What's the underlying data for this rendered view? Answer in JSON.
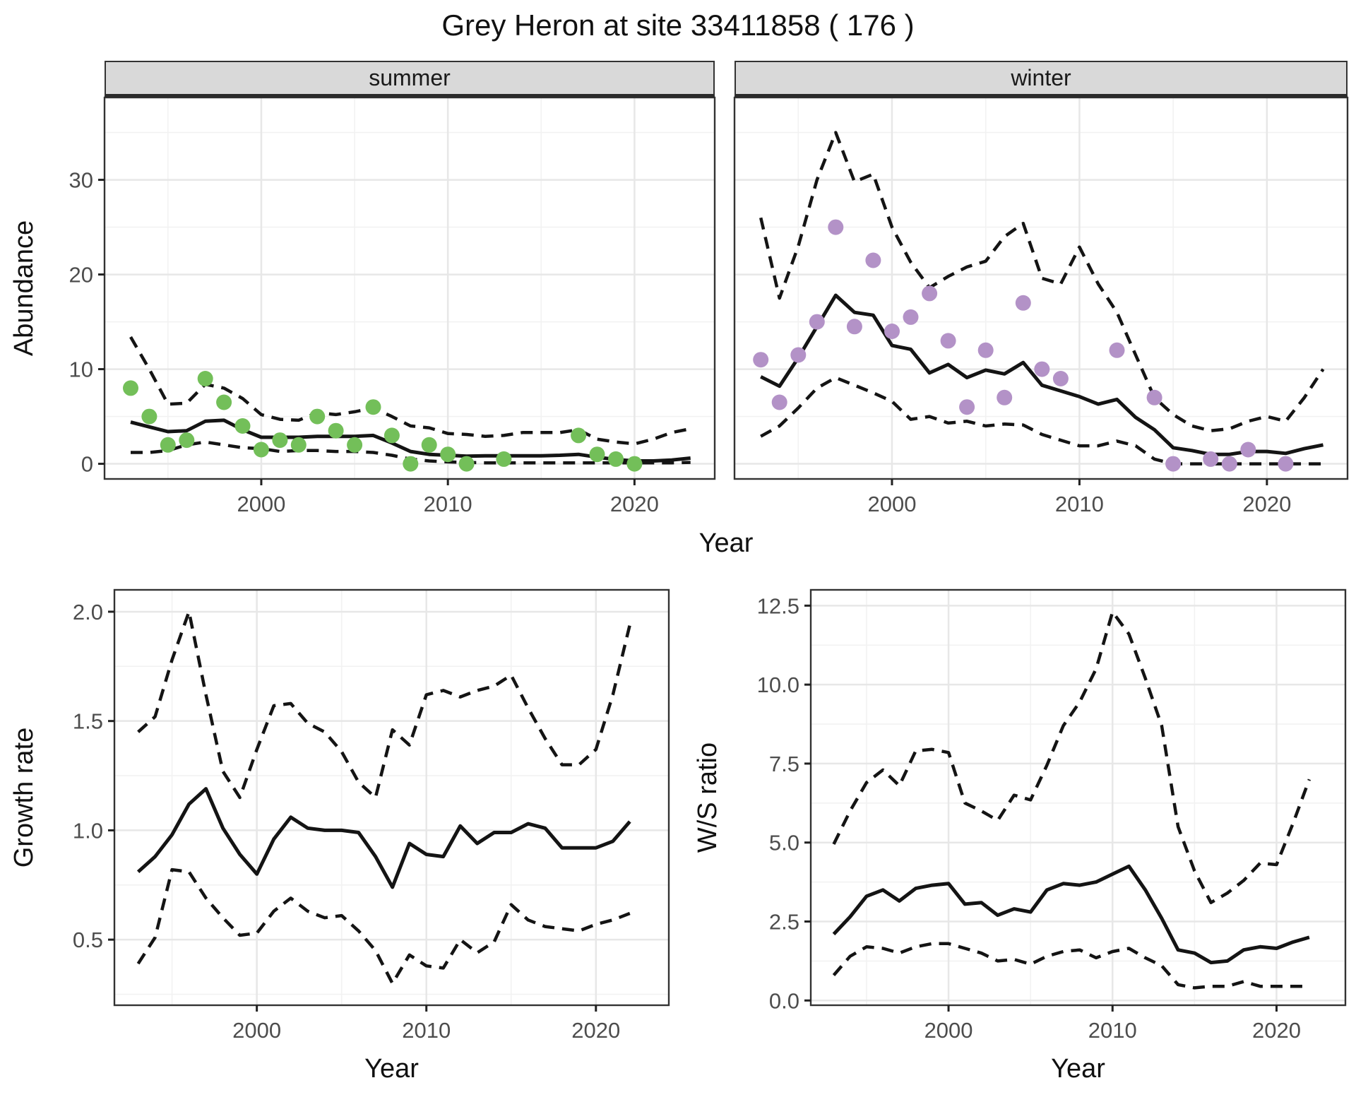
{
  "title": "Grey Heron at site 33411858 ( 176 )",
  "colors": {
    "summer_points": "#73bf59",
    "winter_points": "#b392c7",
    "line": "#141414",
    "grid_major": "#e7e7e7",
    "grid_minor": "#f2f2f2",
    "panel_border": "#333333",
    "strip_background": "#d9d9d9",
    "tick_text": "#4d4d4d"
  },
  "chart_data": [
    {
      "id": "abundance-summer",
      "type": "line",
      "facet_label": "summer",
      "xlabel": "Year",
      "ylabel": "Abundance",
      "xlim": [
        1991.6,
        2024.3
      ],
      "ylim": [
        -1.6,
        38.7
      ],
      "x_ticks": {
        "values": [
          2000,
          2010,
          2020
        ],
        "labels": [
          "2000",
          "2010",
          "2020"
        ],
        "minor": [
          1995,
          2005,
          2015
        ]
      },
      "y_ticks": {
        "values": [
          0,
          10,
          20,
          30
        ],
        "labels": [
          "0",
          "10",
          "20",
          "30"
        ],
        "minor": [
          5,
          15,
          25,
          35
        ]
      },
      "years": [
        1993,
        1994,
        1995,
        1996,
        1997,
        1998,
        1999,
        2000,
        2001,
        2002,
        2003,
        2004,
        2005,
        2006,
        2007,
        2008,
        2009,
        2010,
        2011,
        2012,
        2013,
        2014,
        2015,
        2016,
        2017,
        2018,
        2019,
        2020,
        2021,
        2022,
        2023
      ],
      "series": [
        {
          "name": "estimate",
          "style": "solid",
          "values": [
            4.4,
            3.9,
            3.4,
            3.5,
            4.5,
            4.6,
            3.6,
            2.8,
            2.8,
            2.8,
            2.9,
            2.9,
            2.9,
            3.0,
            2.2,
            1.3,
            1.0,
            0.9,
            0.8,
            0.85,
            0.85,
            0.85,
            0.85,
            0.9,
            1.0,
            0.7,
            0.45,
            0.3,
            0.3,
            0.4,
            0.6
          ]
        },
        {
          "name": "upper-ci",
          "style": "dashed",
          "values": [
            13.4,
            10.0,
            6.3,
            6.4,
            8.4,
            8.0,
            6.9,
            5.2,
            4.7,
            4.6,
            5.4,
            5.2,
            5.5,
            5.9,
            5.0,
            4.0,
            3.8,
            3.2,
            3.1,
            2.9,
            3.0,
            3.3,
            3.3,
            3.3,
            3.6,
            2.6,
            2.3,
            2.1,
            2.6,
            3.3,
            3.7
          ]
        },
        {
          "name": "lower-ci",
          "style": "dashed",
          "values": [
            1.2,
            1.2,
            1.4,
            2.0,
            2.3,
            2.0,
            1.7,
            1.6,
            1.3,
            1.4,
            1.4,
            1.3,
            1.3,
            1.2,
            0.9,
            0.5,
            0.3,
            0.2,
            0.15,
            0.1,
            0.1,
            0.1,
            0.1,
            0.1,
            0.1,
            0.1,
            0.1,
            0.1,
            0.1,
            0.1,
            0.15
          ]
        }
      ],
      "points": {
        "name": "observed-counts",
        "color": "#73bf59",
        "data": [
          [
            1993,
            8
          ],
          [
            1994,
            5
          ],
          [
            1995,
            2
          ],
          [
            1996,
            2.5
          ],
          [
            1997,
            9
          ],
          [
            1998,
            6.5
          ],
          [
            1999,
            4
          ],
          [
            2000,
            1.5
          ],
          [
            2001,
            2.5
          ],
          [
            2002,
            2
          ],
          [
            2003,
            5
          ],
          [
            2004,
            3.5
          ],
          [
            2005,
            2
          ],
          [
            2006,
            6
          ],
          [
            2007,
            3
          ],
          [
            2008,
            0
          ],
          [
            2009,
            2
          ],
          [
            2010,
            1
          ],
          [
            2011,
            0
          ],
          [
            2013,
            0.5
          ],
          [
            2017,
            3
          ],
          [
            2018,
            1
          ],
          [
            2019,
            0.5
          ],
          [
            2020,
            0
          ]
        ]
      }
    },
    {
      "id": "abundance-winter",
      "type": "line",
      "facet_label": "winter",
      "xlabel": "Year",
      "ylabel": "Abundance",
      "xlim": [
        1991.6,
        2024.3
      ],
      "ylim": [
        -1.6,
        38.7
      ],
      "x_ticks": {
        "values": [
          2000,
          2010,
          2020
        ],
        "labels": [
          "2000",
          "2010",
          "2020"
        ],
        "minor": [
          1995,
          2005,
          2015
        ]
      },
      "y_ticks": {
        "values": [
          0,
          10,
          20,
          30
        ],
        "labels": [
          "0",
          "10",
          "20",
          "30"
        ],
        "minor": [
          5,
          15,
          25,
          35
        ]
      },
      "years": [
        1993,
        1994,
        1995,
        1996,
        1997,
        1998,
        1999,
        2000,
        2001,
        2002,
        2003,
        2004,
        2005,
        2006,
        2007,
        2008,
        2009,
        2010,
        2011,
        2012,
        2013,
        2014,
        2015,
        2016,
        2017,
        2018,
        2019,
        2020,
        2021,
        2022,
        2023
      ],
      "series": [
        {
          "name": "estimate",
          "style": "solid",
          "values": [
            9.2,
            8.2,
            11.2,
            14.5,
            17.8,
            16.0,
            15.7,
            12.5,
            12.1,
            9.6,
            10.5,
            9.1,
            9.9,
            9.5,
            10.7,
            8.3,
            7.7,
            7.1,
            6.3,
            6.8,
            4.9,
            3.6,
            1.7,
            1.4,
            1.0,
            1.0,
            1.3,
            1.3,
            1.1,
            1.6,
            2.0
          ]
        },
        {
          "name": "upper-ci",
          "style": "dashed",
          "values": [
            26.0,
            17.5,
            23.0,
            30.0,
            35.0,
            29.8,
            30.6,
            25.0,
            21.3,
            18.6,
            19.8,
            20.8,
            21.4,
            24.0,
            25.4,
            19.6,
            19.0,
            22.9,
            19.0,
            16.0,
            11.5,
            7.0,
            5.2,
            4.0,
            3.5,
            3.7,
            4.5,
            5.0,
            4.5,
            7.0,
            10.0
          ]
        },
        {
          "name": "lower-ci",
          "style": "dashed",
          "values": [
            2.9,
            4.0,
            5.9,
            8.0,
            9.1,
            8.3,
            7.5,
            6.6,
            4.7,
            5.0,
            4.3,
            4.5,
            4.0,
            4.2,
            4.1,
            3.1,
            2.5,
            1.9,
            1.9,
            2.4,
            1.9,
            0.5,
            0,
            0,
            0,
            0,
            0,
            0,
            0,
            0,
            0
          ]
        }
      ],
      "points": {
        "name": "observed-counts",
        "color": "#b392c7",
        "data": [
          [
            1993,
            11
          ],
          [
            1994,
            6.5
          ],
          [
            1995,
            11.5
          ],
          [
            1996,
            15
          ],
          [
            1997,
            25
          ],
          [
            1998,
            14.5
          ],
          [
            1999,
            21.5
          ],
          [
            2000,
            14
          ],
          [
            2001,
            15.5
          ],
          [
            2002,
            18
          ],
          [
            2003,
            13
          ],
          [
            2004,
            6
          ],
          [
            2005,
            12
          ],
          [
            2006,
            7
          ],
          [
            2007,
            17
          ],
          [
            2008,
            10
          ],
          [
            2009,
            9
          ],
          [
            2012,
            12
          ],
          [
            2014,
            7
          ],
          [
            2015,
            0
          ],
          [
            2017,
            0.5
          ],
          [
            2018,
            0
          ],
          [
            2019,
            1.5
          ],
          [
            2021,
            0
          ]
        ]
      }
    },
    {
      "id": "growth-rate",
      "type": "line",
      "facet_label": "",
      "xlabel": "Year",
      "ylabel": "Growth rate",
      "xlim": [
        1991.6,
        2024.3
      ],
      "ylim": [
        0.2,
        2.1
      ],
      "x_ticks": {
        "values": [
          2000,
          2010,
          2020
        ],
        "labels": [
          "2000",
          "2010",
          "2020"
        ],
        "minor": [
          1995,
          2005,
          2015
        ]
      },
      "y_ticks": {
        "values": [
          0.5,
          1.0,
          1.5,
          2.0
        ],
        "labels": [
          "0.5",
          "1.0",
          "1.5",
          "2.0"
        ],
        "minor": [
          0.25,
          0.75,
          1.25,
          1.75
        ]
      },
      "years": [
        1993,
        1994,
        1995,
        1996,
        1997,
        1998,
        1999,
        2000,
        2001,
        2002,
        2003,
        2004,
        2005,
        2006,
        2007,
        2008,
        2009,
        2010,
        2011,
        2012,
        2013,
        2014,
        2015,
        2016,
        2017,
        2018,
        2019,
        2020,
        2021,
        2022
      ],
      "series": [
        {
          "name": "estimate",
          "style": "solid",
          "values": [
            0.81,
            0.88,
            0.98,
            1.12,
            1.19,
            1.01,
            0.89,
            0.8,
            0.96,
            1.06,
            1.01,
            1.0,
            1.0,
            0.99,
            0.88,
            0.74,
            0.94,
            0.89,
            0.88,
            1.02,
            0.94,
            0.99,
            0.99,
            1.03,
            1.01,
            0.92,
            0.92,
            0.92,
            0.95,
            1.04
          ]
        },
        {
          "name": "upper-ci",
          "style": "dashed",
          "values": [
            1.45,
            1.52,
            1.78,
            2.0,
            1.62,
            1.27,
            1.15,
            1.37,
            1.57,
            1.58,
            1.49,
            1.45,
            1.36,
            1.22,
            1.15,
            1.46,
            1.39,
            1.62,
            1.64,
            1.61,
            1.64,
            1.66,
            1.71,
            1.56,
            1.42,
            1.3,
            1.3,
            1.37,
            1.62,
            1.94
          ]
        },
        {
          "name": "lower-ci",
          "style": "dashed",
          "values": [
            0.39,
            0.51,
            0.82,
            0.81,
            0.69,
            0.6,
            0.52,
            0.53,
            0.63,
            0.69,
            0.63,
            0.6,
            0.61,
            0.54,
            0.45,
            0.3,
            0.43,
            0.38,
            0.37,
            0.5,
            0.44,
            0.49,
            0.66,
            0.59,
            0.56,
            0.55,
            0.54,
            0.57,
            0.59,
            0.62
          ]
        }
      ],
      "points": null
    },
    {
      "id": "ws-ratio",
      "type": "line",
      "facet_label": "",
      "xlabel": "Year",
      "ylabel": "W/S ratio",
      "xlim": [
        1991.6,
        2024.2
      ],
      "ylim": [
        -0.15,
        13.0
      ],
      "x_ticks": {
        "values": [
          2000,
          2010,
          2020
        ],
        "labels": [
          "2000",
          "2010",
          "2020"
        ],
        "minor": [
          1995,
          2005,
          2015
        ]
      },
      "y_ticks": {
        "values": [
          0.0,
          2.5,
          5.0,
          7.5,
          10.0,
          12.5
        ],
        "labels": [
          "0.0",
          "2.5",
          "5.0",
          "7.5",
          "10.0",
          "12.5"
        ],
        "minor": [
          1.25,
          3.75,
          6.25,
          8.75,
          11.25
        ]
      },
      "years": [
        1993,
        1994,
        1995,
        1996,
        1997,
        1998,
        1999,
        2000,
        2001,
        2002,
        2003,
        2004,
        2005,
        2006,
        2007,
        2008,
        2009,
        2010,
        2011,
        2012,
        2013,
        2014,
        2015,
        2016,
        2017,
        2018,
        2019,
        2020,
        2021,
        2022
      ],
      "series": [
        {
          "name": "estimate",
          "style": "solid",
          "values": [
            2.1,
            2.65,
            3.3,
            3.5,
            3.15,
            3.55,
            3.65,
            3.7,
            3.05,
            3.1,
            2.7,
            2.9,
            2.8,
            3.5,
            3.7,
            3.65,
            3.75,
            4.0,
            4.25,
            3.5,
            2.6,
            1.6,
            1.5,
            1.2,
            1.25,
            1.6,
            1.7,
            1.65,
            1.85,
            2.0
          ]
        },
        {
          "name": "upper-ci",
          "style": "dashed",
          "values": [
            4.95,
            6.0,
            6.9,
            7.3,
            6.8,
            7.9,
            7.95,
            7.85,
            6.25,
            6.0,
            5.7,
            6.5,
            6.35,
            7.45,
            8.7,
            9.45,
            10.5,
            12.3,
            11.6,
            10.2,
            8.7,
            5.5,
            4.1,
            3.1,
            3.4,
            3.8,
            4.35,
            4.3,
            5.6,
            7.0
          ]
        },
        {
          "name": "lower-ci",
          "style": "dashed",
          "values": [
            0.8,
            1.4,
            1.7,
            1.65,
            1.5,
            1.7,
            1.8,
            1.8,
            1.65,
            1.5,
            1.25,
            1.3,
            1.15,
            1.4,
            1.55,
            1.6,
            1.35,
            1.55,
            1.65,
            1.35,
            1.1,
            0.5,
            0.4,
            0.45,
            0.45,
            0.6,
            0.45,
            0.45,
            0.45,
            0.45
          ]
        }
      ],
      "points": null
    }
  ]
}
